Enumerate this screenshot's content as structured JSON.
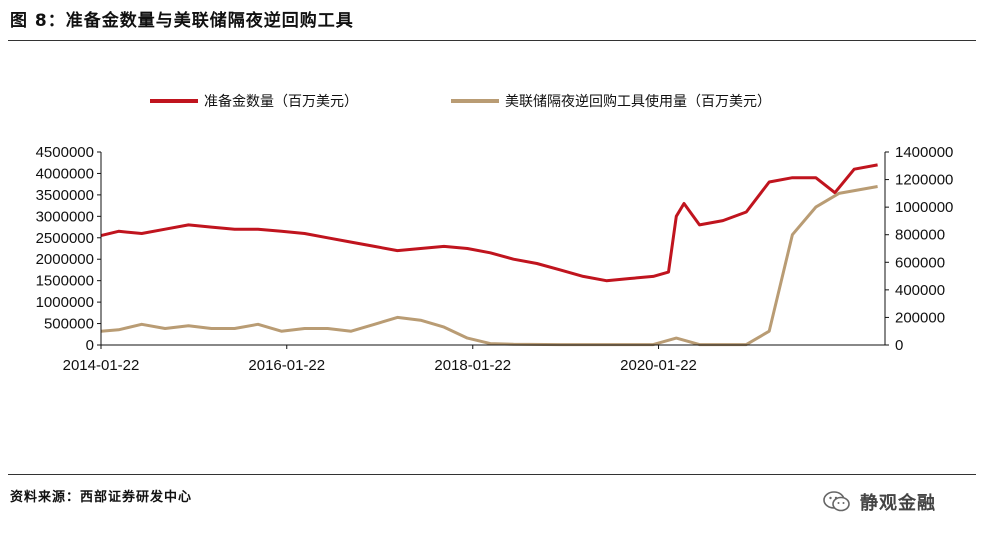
{
  "figure": {
    "title": "图 8：准备金数量与美联储隔夜逆回购工具",
    "source": "资料来源：西部证券研发中心",
    "watermark": "静观金融",
    "watermark_icon": "wechat-icon"
  },
  "chart_data": {
    "type": "line",
    "legend_position": "top",
    "grid": false,
    "x_ticks": [
      "2014-01-22",
      "2016-01-22",
      "2018-01-22",
      "2020-01-22"
    ],
    "xlim": [
      "2014-01-22",
      "2022-06-30"
    ],
    "y_left": {
      "ylim": [
        0,
        4500000
      ],
      "ticks": [
        "0",
        "500000",
        "1000000",
        "1500000",
        "2000000",
        "2500000",
        "3000000",
        "3500000",
        "4000000",
        "4500000"
      ]
    },
    "y_right": {
      "ylim": [
        0,
        1400000
      ],
      "ticks": [
        "0",
        "200000",
        "400000",
        "600000",
        "800000",
        "1000000",
        "1200000",
        "1400000"
      ]
    },
    "series": [
      {
        "name": "准备金数量（百万美元）",
        "axis": "left",
        "color": "#C0141E",
        "points": [
          [
            "2014-01-22",
            2550000
          ],
          [
            "2014-04-01",
            2650000
          ],
          [
            "2014-07-01",
            2600000
          ],
          [
            "2014-10-01",
            2700000
          ],
          [
            "2015-01-01",
            2800000
          ],
          [
            "2015-04-01",
            2750000
          ],
          [
            "2015-07-01",
            2700000
          ],
          [
            "2015-10-01",
            2700000
          ],
          [
            "2016-01-01",
            2650000
          ],
          [
            "2016-04-01",
            2600000
          ],
          [
            "2016-07-01",
            2500000
          ],
          [
            "2016-10-01",
            2400000
          ],
          [
            "2017-01-01",
            2300000
          ],
          [
            "2017-04-01",
            2200000
          ],
          [
            "2017-07-01",
            2250000
          ],
          [
            "2017-10-01",
            2300000
          ],
          [
            "2018-01-01",
            2250000
          ],
          [
            "2018-04-01",
            2150000
          ],
          [
            "2018-07-01",
            2000000
          ],
          [
            "2018-10-01",
            1900000
          ],
          [
            "2019-01-01",
            1750000
          ],
          [
            "2019-04-01",
            1600000
          ],
          [
            "2019-07-01",
            1500000
          ],
          [
            "2019-10-01",
            1550000
          ],
          [
            "2020-01-01",
            1600000
          ],
          [
            "2020-03-01",
            1700000
          ],
          [
            "2020-04-01",
            3000000
          ],
          [
            "2020-05-01",
            3300000
          ],
          [
            "2020-07-01",
            2800000
          ],
          [
            "2020-10-01",
            2900000
          ],
          [
            "2021-01-01",
            3100000
          ],
          [
            "2021-04-01",
            3800000
          ],
          [
            "2021-07-01",
            3900000
          ],
          [
            "2021-10-01",
            3900000
          ],
          [
            "2021-12-15",
            3550000
          ],
          [
            "2022-03-01",
            4100000
          ],
          [
            "2022-06-01",
            4200000
          ]
        ]
      },
      {
        "name": "美联储隔夜逆回购工具使用量（百万美元）",
        "axis": "right",
        "color": "#B99C74",
        "points": [
          [
            "2014-01-22",
            100000
          ],
          [
            "2014-04-01",
            110000
          ],
          [
            "2014-07-01",
            150000
          ],
          [
            "2014-10-01",
            120000
          ],
          [
            "2015-01-01",
            140000
          ],
          [
            "2015-04-01",
            120000
          ],
          [
            "2015-07-01",
            120000
          ],
          [
            "2015-10-01",
            150000
          ],
          [
            "2016-01-01",
            100000
          ],
          [
            "2016-04-01",
            120000
          ],
          [
            "2016-07-01",
            120000
          ],
          [
            "2016-10-01",
            100000
          ],
          [
            "2017-01-01",
            150000
          ],
          [
            "2017-04-01",
            200000
          ],
          [
            "2017-07-01",
            180000
          ],
          [
            "2017-10-01",
            130000
          ],
          [
            "2018-01-01",
            50000
          ],
          [
            "2018-04-01",
            10000
          ],
          [
            "2018-07-01",
            5000
          ],
          [
            "2019-01-01",
            3000
          ],
          [
            "2019-07-01",
            3000
          ],
          [
            "2020-01-01",
            3000
          ],
          [
            "2020-04-01",
            50000
          ],
          [
            "2020-07-01",
            3000
          ],
          [
            "2021-01-01",
            3000
          ],
          [
            "2021-04-01",
            100000
          ],
          [
            "2021-07-01",
            800000
          ],
          [
            "2021-10-01",
            1000000
          ],
          [
            "2021-12-31",
            1100000
          ],
          [
            "2022-06-01",
            1150000
          ]
        ]
      }
    ]
  }
}
